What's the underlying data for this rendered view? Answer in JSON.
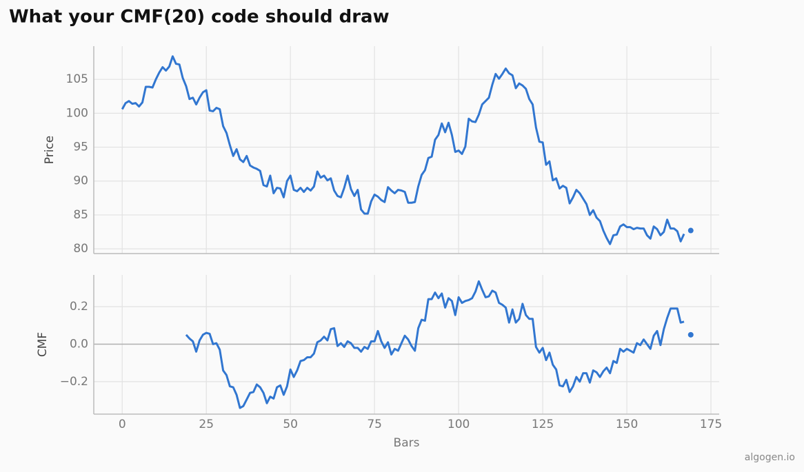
{
  "chart_data": [
    {
      "type": "line",
      "title": "What your CMF(20) code should draw",
      "ylabel": "Price",
      "color": "#3176d0",
      "x": [
        0,
        1,
        2,
        3,
        4,
        5,
        6,
        7,
        8,
        9,
        10,
        11,
        12,
        13,
        14,
        15,
        16,
        17,
        18,
        19,
        20,
        21,
        22,
        23,
        24,
        25,
        26,
        27,
        28,
        29,
        30,
        31,
        32,
        33,
        34,
        35,
        36,
        37,
        38,
        39,
        40,
        41,
        42,
        43,
        44,
        45,
        46,
        47,
        48,
        49,
        50,
        51,
        52,
        53,
        54,
        55,
        56,
        57,
        58,
        59,
        60,
        61,
        62,
        63,
        64,
        65,
        66,
        67,
        68,
        69,
        70,
        71,
        72,
        73,
        74,
        75,
        76,
        77,
        78,
        79,
        80,
        81,
        82,
        83,
        84,
        85,
        86,
        87,
        88,
        89,
        90,
        91,
        92,
        93,
        94,
        95,
        96,
        97,
        98,
        99,
        100,
        101,
        102,
        103,
        104,
        105,
        106,
        107,
        108,
        109,
        110,
        111,
        112,
        113,
        114,
        115,
        116,
        117,
        118,
        119,
        120,
        121,
        122,
        123,
        124,
        125,
        126,
        127,
        128,
        129,
        130,
        131,
        132,
        133,
        134,
        135,
        136,
        137,
        138,
        139,
        140,
        141,
        142,
        143,
        144,
        145,
        146,
        147,
        148,
        149,
        150,
        151,
        152,
        153,
        154,
        155,
        156,
        157,
        158,
        159,
        160,
        161,
        162,
        163,
        164,
        165,
        166,
        167,
        168,
        169
      ],
      "values": [
        100.6,
        101.5,
        101.8,
        101.4,
        101.5,
        101,
        101.6,
        103.9,
        103.9,
        103.8,
        105,
        106,
        106.8,
        106.3,
        106.9,
        108.4,
        107.3,
        107.2,
        105.2,
        104,
        102.1,
        102.3,
        101.3,
        102.3,
        103.1,
        103.4,
        100.4,
        100.3,
        100.8,
        100.6,
        98.1,
        97.1,
        95.3,
        93.7,
        94.7,
        93.2,
        92.8,
        93.7,
        92.3,
        92,
        91.8,
        91.5,
        89.4,
        89.2,
        90.8,
        88.2,
        89,
        88.9,
        87.6,
        90,
        90.8,
        88.7,
        88.5,
        89,
        88.4,
        89,
        88.6,
        89.2,
        91.4,
        90.5,
        90.8,
        90.1,
        90.4,
        88.6,
        87.8,
        87.6,
        89,
        90.8,
        88.8,
        87.8,
        88.7,
        85.8,
        85.2,
        85.2,
        87,
        88,
        87.7,
        87.2,
        86.9,
        89.1,
        88.6,
        88.2,
        88.7,
        88.6,
        88.4,
        86.8,
        86.8,
        86.9,
        89.2,
        90.9,
        91.6,
        93.4,
        93.6,
        96.1,
        96.8,
        98.5,
        97.2,
        98.6,
        96.8,
        94.3,
        94.5,
        94,
        95.1,
        99.2,
        98.8,
        98.7,
        99.8,
        101.3,
        101.8,
        102.3,
        104.2,
        105.8,
        105.1,
        105.8,
        106.6,
        105.9,
        105.6,
        103.7,
        104.4,
        104.1,
        103.6,
        102.1,
        101.3,
        97.9,
        95.8,
        95.7,
        92.4,
        92.9,
        90.1,
        90.4,
        88.9,
        89.3,
        89,
        86.7,
        87.6,
        88.7,
        88.2,
        87.4,
        86.6,
        85,
        85.7,
        84.6,
        84.1,
        82.7,
        81.6,
        80.7,
        82,
        82.1,
        83.3,
        83.6,
        83.2,
        83.2,
        82.9,
        83.1,
        83,
        83,
        82,
        81.5,
        83.3,
        82.9,
        82,
        82.5,
        84.3,
        83,
        83,
        82.6,
        81.1,
        82.2,
        null,
        82.7
      ],
      "xlim": [
        -8.45,
        177.45
      ],
      "ylim": [
        79.3,
        109.9
      ],
      "xticks": [
        0,
        25,
        50,
        75,
        100,
        125,
        150,
        175
      ],
      "yticks": [
        80,
        85,
        90,
        95,
        100,
        105
      ],
      "grid": true
    },
    {
      "type": "line",
      "ylabel": "CMF",
      "xlabel": "Bars",
      "color": "#3176d0",
      "x": [
        0,
        1,
        2,
        3,
        4,
        5,
        6,
        7,
        8,
        9,
        10,
        11,
        12,
        13,
        14,
        15,
        16,
        17,
        18,
        19,
        20,
        21,
        22,
        23,
        24,
        25,
        26,
        27,
        28,
        29,
        30,
        31,
        32,
        33,
        34,
        35,
        36,
        37,
        38,
        39,
        40,
        41,
        42,
        43,
        44,
        45,
        46,
        47,
        48,
        49,
        50,
        51,
        52,
        53,
        54,
        55,
        56,
        57,
        58,
        59,
        60,
        61,
        62,
        63,
        64,
        65,
        66,
        67,
        68,
        69,
        70,
        71,
        72,
        73,
        74,
        75,
        76,
        77,
        78,
        79,
        80,
        81,
        82,
        83,
        84,
        85,
        86,
        87,
        88,
        89,
        90,
        91,
        92,
        93,
        94,
        95,
        96,
        97,
        98,
        99,
        100,
        101,
        102,
        103,
        104,
        105,
        106,
        107,
        108,
        109,
        110,
        111,
        112,
        113,
        114,
        115,
        116,
        117,
        118,
        119,
        120,
        121,
        122,
        123,
        124,
        125,
        126,
        127,
        128,
        129,
        130,
        131,
        132,
        133,
        134,
        135,
        136,
        137,
        138,
        139,
        140,
        141,
        142,
        143,
        144,
        145,
        146,
        147,
        148,
        149,
        150,
        151,
        152,
        153,
        154,
        155,
        156,
        157,
        158,
        159,
        160,
        161,
        162,
        163,
        164,
        165,
        166,
        167,
        168,
        169
      ],
      "values": [
        null,
        null,
        null,
        null,
        null,
        null,
        null,
        null,
        null,
        null,
        null,
        null,
        null,
        null,
        null,
        null,
        null,
        null,
        null,
        0.05,
        0.03,
        0.015,
        -0.04,
        0.02,
        0.05,
        0.06,
        0.055,
        0.0,
        0.005,
        -0.03,
        -0.14,
        -0.165,
        -0.225,
        -0.23,
        -0.27,
        -0.34,
        -0.33,
        -0.295,
        -0.26,
        -0.255,
        -0.215,
        -0.23,
        -0.26,
        -0.315,
        -0.28,
        -0.29,
        -0.23,
        -0.22,
        -0.27,
        -0.225,
        -0.135,
        -0.175,
        -0.14,
        -0.09,
        -0.085,
        -0.07,
        -0.07,
        -0.05,
        0.01,
        0.02,
        0.04,
        0.02,
        0.08,
        0.085,
        -0.01,
        0.005,
        -0.015,
        0.015,
        0.005,
        -0.02,
        -0.02,
        -0.04,
        -0.015,
        -0.025,
        0.015,
        0.015,
        0.07,
        0.015,
        -0.02,
        0.01,
        -0.055,
        -0.025,
        -0.035,
        0.005,
        0.045,
        0.025,
        -0.01,
        -0.035,
        0.085,
        0.13,
        0.125,
        0.24,
        0.24,
        0.275,
        0.245,
        0.27,
        0.195,
        0.245,
        0.23,
        0.155,
        0.25,
        0.22,
        0.23,
        0.235,
        0.245,
        0.28,
        0.335,
        0.29,
        0.25,
        0.255,
        0.285,
        0.275,
        0.22,
        0.21,
        0.195,
        0.115,
        0.185,
        0.115,
        0.135,
        0.215,
        0.155,
        0.135,
        0.135,
        -0.015,
        -0.045,
        -0.02,
        -0.085,
        -0.045,
        -0.11,
        -0.135,
        -0.22,
        -0.225,
        -0.19,
        -0.255,
        -0.225,
        -0.175,
        -0.2,
        -0.155,
        -0.155,
        -0.205,
        -0.14,
        -0.15,
        -0.175,
        -0.145,
        -0.125,
        -0.155,
        -0.09,
        -0.1,
        -0.025,
        -0.04,
        -0.025,
        -0.035,
        -0.045,
        0.005,
        -0.005,
        0.025,
        0.0,
        -0.025,
        0.045,
        0.07,
        -0.005,
        0.08,
        0.14,
        0.19,
        0.19,
        0.19,
        0.115,
        0.12,
        null,
        0.05
      ],
      "xlim": [
        -8.45,
        177.45
      ],
      "ylim": [
        -0.373,
        0.369
      ],
      "xticks": [
        0,
        25,
        50,
        75,
        100,
        125,
        150,
        175
      ],
      "yticks": [
        {
          "value": -0.2,
          "label": "−0.2"
        },
        {
          "value": 0,
          "label": "0.0"
        },
        0.2
      ],
      "axhline": 0,
      "grid": true
    }
  ],
  "watermark": "algogen.io"
}
